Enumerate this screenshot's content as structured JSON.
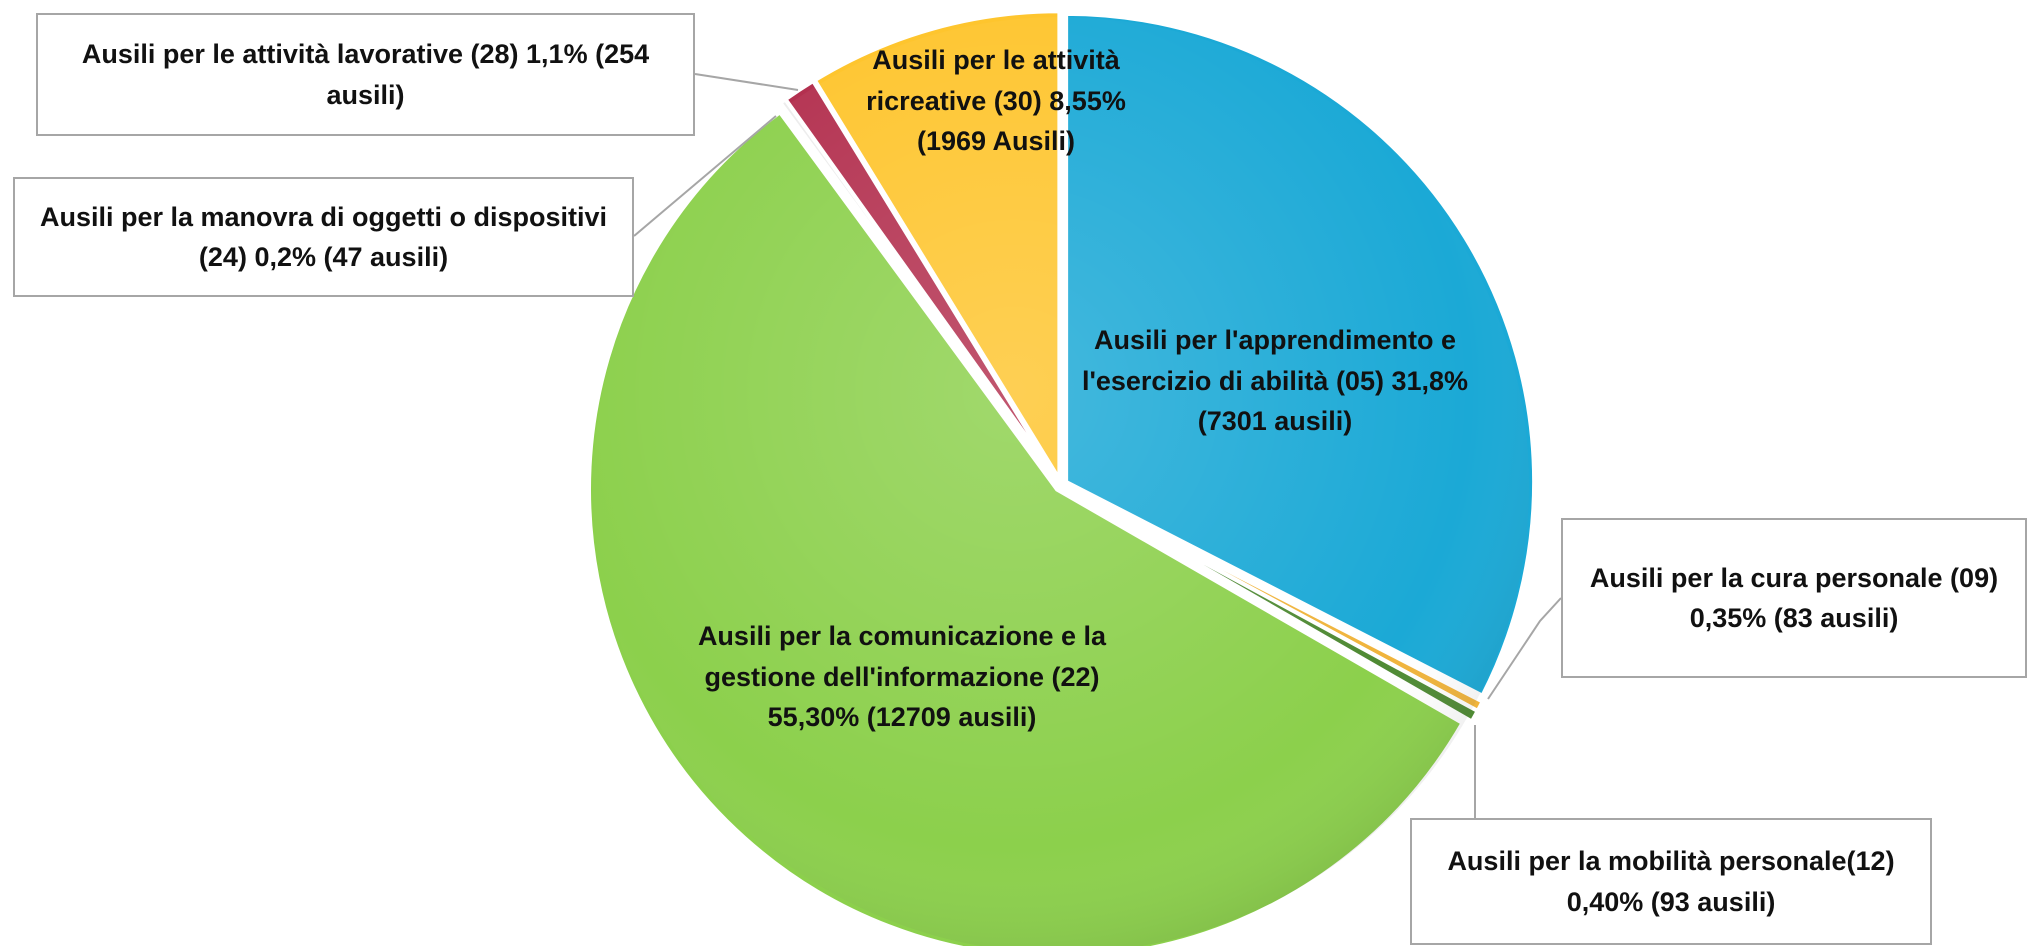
{
  "chart_data": {
    "type": "pie",
    "categories": [
      "Ausili per l'apprendimento e l'esercizio di abilità (05)",
      "Ausili per la cura personale (09)",
      "Ausili per la mobilità personale(12)",
      "Ausili per la comunicazione e la gestione dell'informazione (22)",
      "Ausili per la manovra di oggetti o dispositivi (24)",
      "Ausili per le attività lavorative (28)",
      "Ausili per le attività ricreative (30)"
    ],
    "values": [
      31.8,
      0.35,
      0.4,
      55.3,
      0.2,
      1.1,
      8.55
    ],
    "value_labels": [
      "31,8%",
      "0,35%",
      "0,40%",
      "55,30%",
      "0,2%",
      "1,1%",
      "8,55%"
    ],
    "counts": [
      7301,
      83,
      93,
      12709,
      47,
      254,
      1969
    ],
    "count_labels": [
      "(7301 ausili)",
      "(83 ausili)",
      "(93 ausili)",
      "(12709 ausili)",
      "(47 ausili)",
      "(254 ausili)",
      "(1969 Ausili)"
    ],
    "colors": [
      "#1ba9d6",
      "#f0b43c",
      "#4f8a34",
      "#8cd04c",
      "#ececec",
      "#b3304f",
      "#fec52e"
    ]
  }
}
